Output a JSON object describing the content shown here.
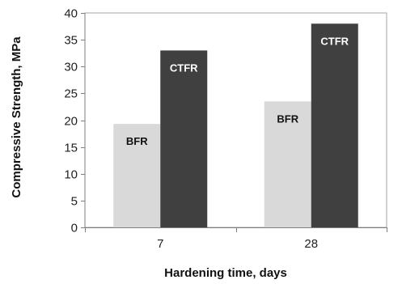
{
  "chart_data": {
    "type": "bar",
    "xlabel": "Hardening time, days",
    "ylabel": "Compressive Strength, MPa",
    "categories": [
      "7",
      "28"
    ],
    "series": [
      {
        "name": "BFR",
        "values": [
          19.3,
          23.5
        ],
        "color": "#d9d9d9",
        "label_color": "#111111"
      },
      {
        "name": "CTFR",
        "values": [
          33.0,
          38.0
        ],
        "color": "#404040",
        "label_color": "#ffffff"
      }
    ],
    "ylim": [
      0,
      40
    ],
    "yticks": [
      0,
      5,
      10,
      15,
      20,
      25,
      30,
      35,
      40
    ],
    "grid": false,
    "legend": "none"
  }
}
